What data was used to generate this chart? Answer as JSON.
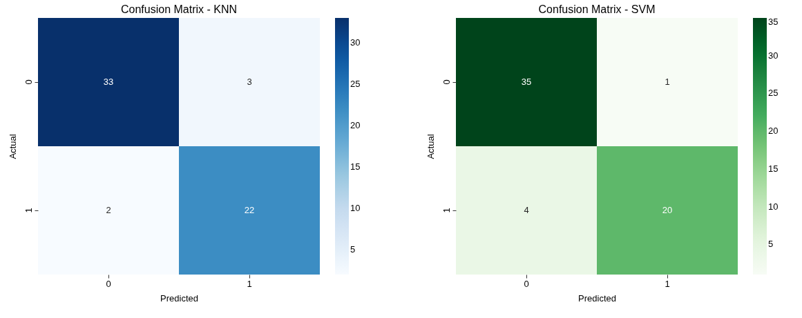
{
  "chart_data": [
    {
      "type": "heatmap",
      "title": "Confusion Matrix - KNN",
      "xlabel": "Predicted",
      "ylabel": "Actual",
      "categories": [
        "0",
        "1"
      ],
      "y_categories": [
        "0",
        "1"
      ],
      "cells": [
        [
          33,
          3
        ],
        [
          2,
          22
        ]
      ],
      "clim": [
        2,
        33
      ],
      "cticks": [
        5,
        10,
        15,
        20,
        25,
        30
      ],
      "colors": [
        "#f7fbff",
        "#deebf7",
        "#c6dbef",
        "#9ecae1",
        "#6baed6",
        "#4292c6",
        "#2171b5",
        "#08519c",
        "#08306b"
      ],
      "data_labels": true
    },
    {
      "type": "heatmap",
      "title": "Confusion Matrix - SVM",
      "xlabel": "Predicted",
      "ylabel": "Actual",
      "categories": [
        "0",
        "1"
      ],
      "y_categories": [
        "0",
        "1"
      ],
      "cells": [
        [
          35,
          1
        ],
        [
          4,
          20
        ]
      ],
      "clim": [
        1,
        35
      ],
      "cticks": [
        5,
        10,
        15,
        20,
        25,
        30,
        35
      ],
      "colors": [
        "#f7fcf5",
        "#e5f5e0",
        "#c7e9c0",
        "#a1d99b",
        "#74c476",
        "#41ab5d",
        "#238b45",
        "#006d2c",
        "#00441b"
      ],
      "data_labels": true
    }
  ]
}
